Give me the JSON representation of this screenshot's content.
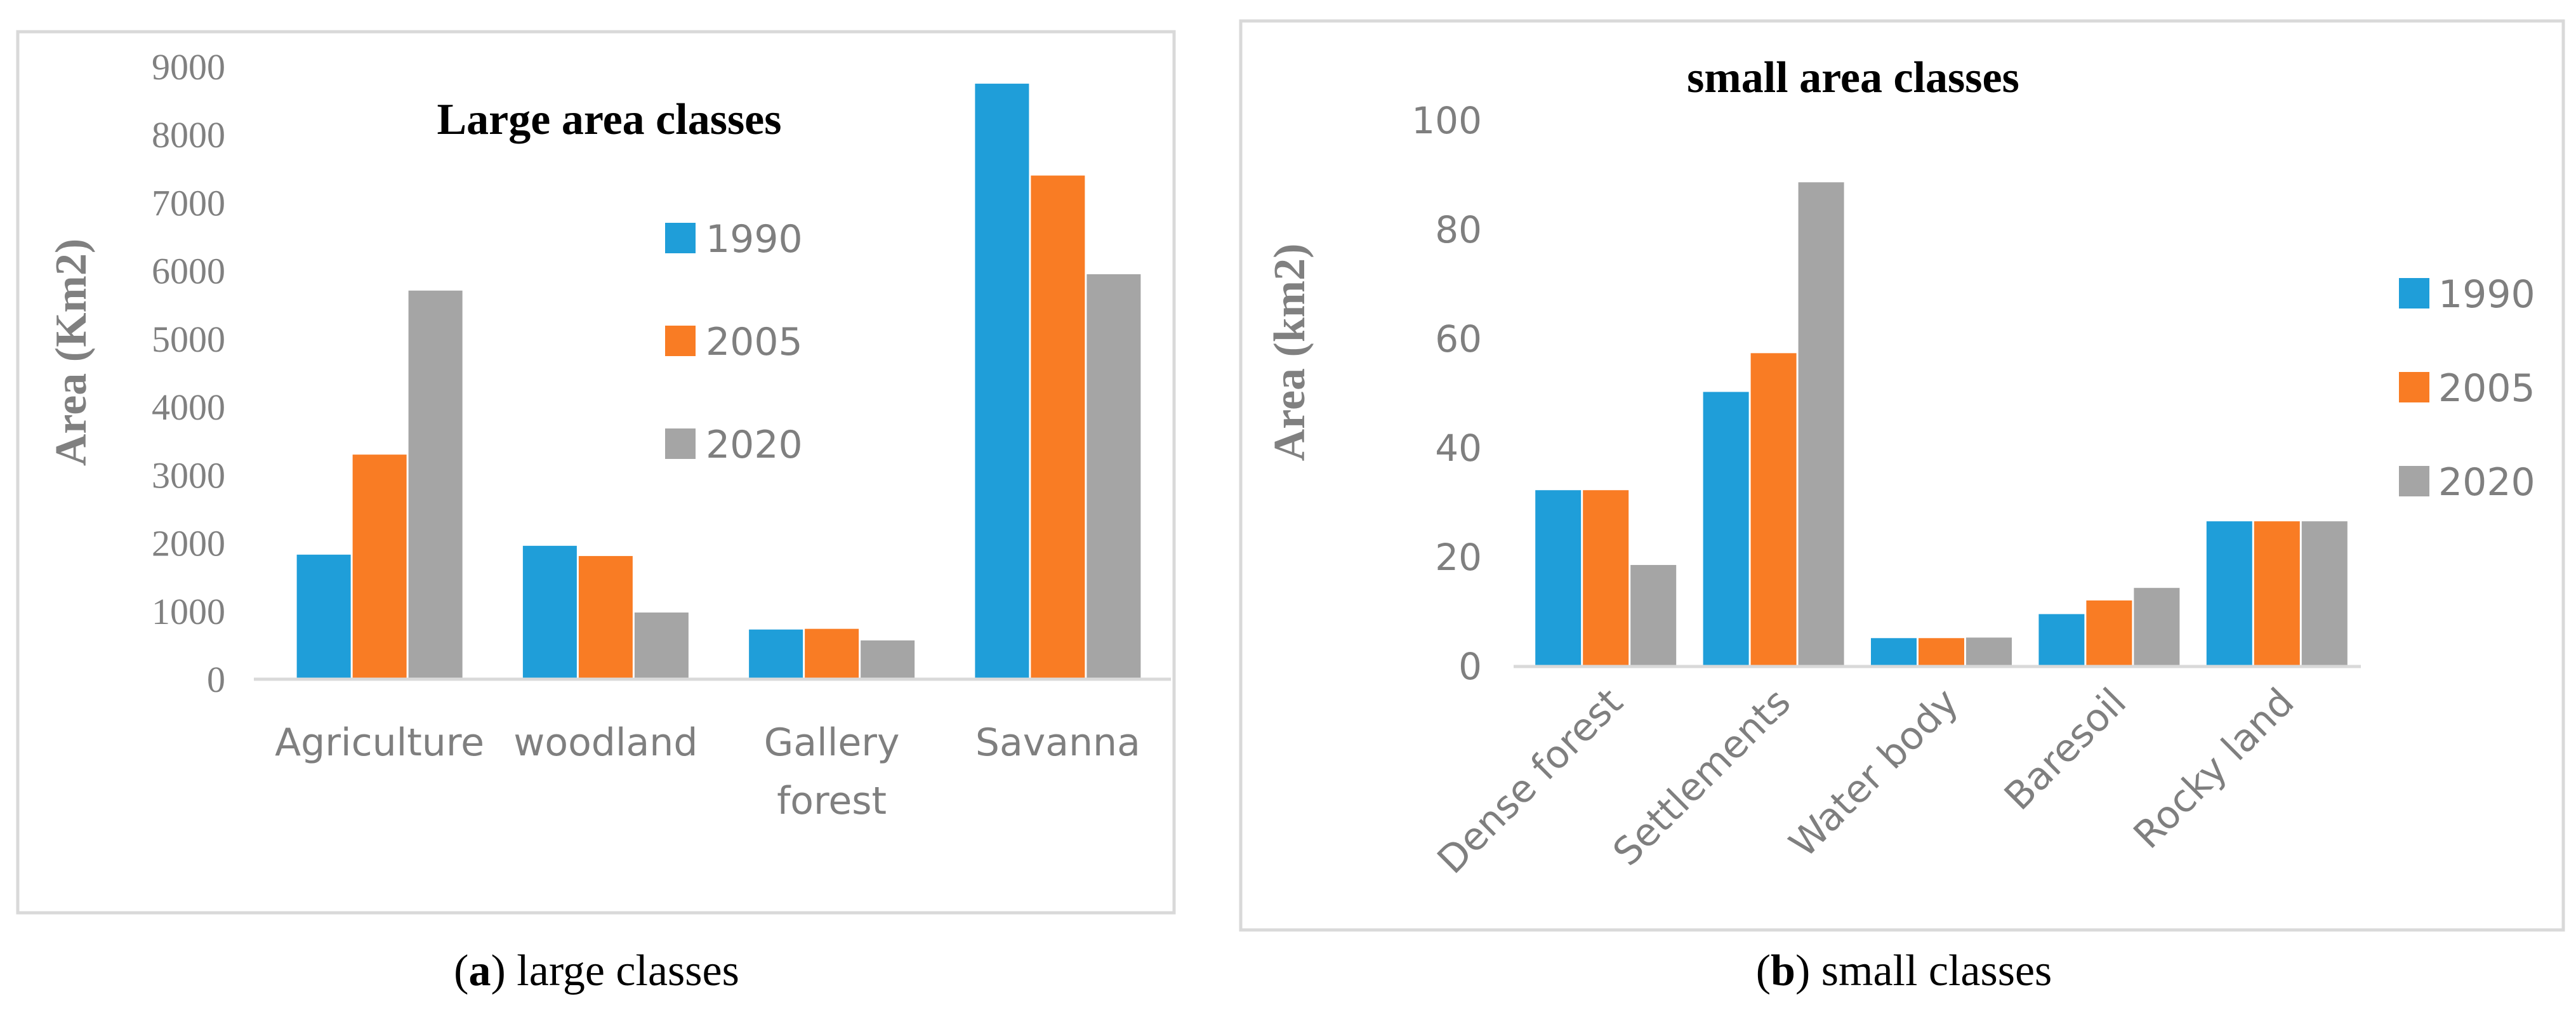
{
  "chart_data": [
    {
      "type": "bar",
      "title": "Large area classes",
      "ylabel": "Area (Km2)",
      "xlabel": "",
      "ylim": [
        0,
        9000
      ],
      "yticks": [
        0,
        1000,
        2000,
        3000,
        4000,
        5000,
        6000,
        7000,
        8000,
        9000
      ],
      "categories": [
        "Agriculture",
        "woodland",
        "Gallery forest",
        "Savanna"
      ],
      "series": [
        {
          "name": "1990",
          "color": "#1f9ed9",
          "values": [
            1830,
            1960,
            730,
            8750
          ]
        },
        {
          "name": "2005",
          "color": "#f97c24",
          "values": [
            3300,
            1810,
            740,
            7400
          ]
        },
        {
          "name": "2020",
          "color": "#a5a5a5",
          "values": [
            5710,
            980,
            570,
            5950
          ]
        }
      ],
      "legend": "right-center",
      "grid": false
    },
    {
      "type": "bar",
      "title": "small area classes",
      "ylabel": "Area (km2)",
      "xlabel": "",
      "ylim": [
        0,
        100
      ],
      "yticks": [
        0,
        20,
        40,
        60,
        80,
        100
      ],
      "categories": [
        "Dense forest",
        "Settlements",
        "Water body",
        "Baresoil",
        "Rocky land"
      ],
      "series": [
        {
          "name": "1990",
          "color": "#1f9ed9",
          "values": [
            32.3,
            50.3,
            5.2,
            9.6,
            26.6
          ]
        },
        {
          "name": "2005",
          "color": "#f97c24",
          "values": [
            32.3,
            57.4,
            5.2,
            12.1,
            26.6
          ]
        },
        {
          "name": "2020",
          "color": "#a5a5a5",
          "values": [
            18.6,
            88.7,
            5.3,
            14.4,
            26.6
          ]
        }
      ],
      "legend": "right",
      "grid": false
    }
  ],
  "captions": {
    "a": {
      "letter": "a",
      "text": " large classes"
    },
    "b": {
      "letter": "b",
      "text": " small classes"
    }
  }
}
